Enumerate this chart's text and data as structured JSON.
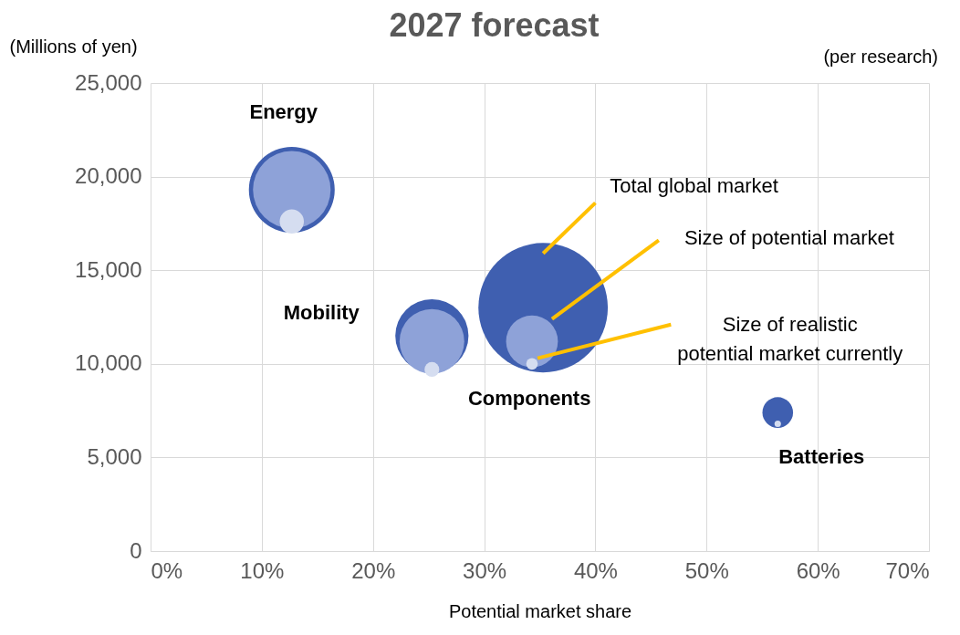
{
  "chart_data": {
    "type": "bubble",
    "title": "2027 forecast",
    "subtitle": "(per research)",
    "xlabel": "Potential market share",
    "ylabel": "(Millions of yen)",
    "series": [
      {
        "name": "Total global market",
        "color": "#3f5fb0",
        "x": [
          12.7,
          25.3,
          35.3,
          56.4
        ],
        "values": [
          19300,
          11500,
          13000,
          7400
        ],
        "sizes": [
          0.44,
          0.32,
          1,
          0.056
        ]
      },
      {
        "name": "Size of potential market",
        "color": "#8ea2d8",
        "x": [
          12.7,
          25.3,
          34.3,
          null
        ],
        "values": [
          19300,
          11200,
          11200,
          null
        ],
        "sizes": [
          0.36,
          0.25,
          0.16,
          null
        ]
      },
      {
        "name": "Size of realistic potential market currently",
        "color": "#d5ddf0",
        "x": [
          12.7,
          25.3,
          34.3,
          56.4
        ],
        "values": [
          17600,
          9700,
          10000,
          6800
        ],
        "sizes": [
          0.035,
          0.013,
          0.008,
          0.0025
        ]
      }
    ],
    "annotations": [
      "Energy",
      "Mobility",
      "Components",
      "Batteries"
    ],
    "xlim": [
      0,
      70
    ],
    "xticks": [
      {
        "value": 0,
        "label": "0%"
      },
      {
        "value": 10,
        "label": "10%"
      },
      {
        "value": 20,
        "label": "20%"
      },
      {
        "value": 30,
        "label": "30%"
      },
      {
        "value": 40,
        "label": "40%"
      },
      {
        "value": 50,
        "label": "50%"
      },
      {
        "value": 60,
        "label": "60%"
      },
      {
        "value": 70,
        "label": "70%"
      }
    ],
    "ylim": [
      0,
      25000
    ],
    "yticks": [
      {
        "value": 0,
        "label": "0"
      },
      {
        "value": 5000,
        "label": "5,000"
      },
      {
        "value": 10000,
        "label": "10,000"
      },
      {
        "value": 15000,
        "label": "15,000"
      },
      {
        "value": 20000,
        "label": "20,000"
      },
      {
        "value": 25000,
        "label": "25,000"
      }
    ],
    "grid": true
  }
}
